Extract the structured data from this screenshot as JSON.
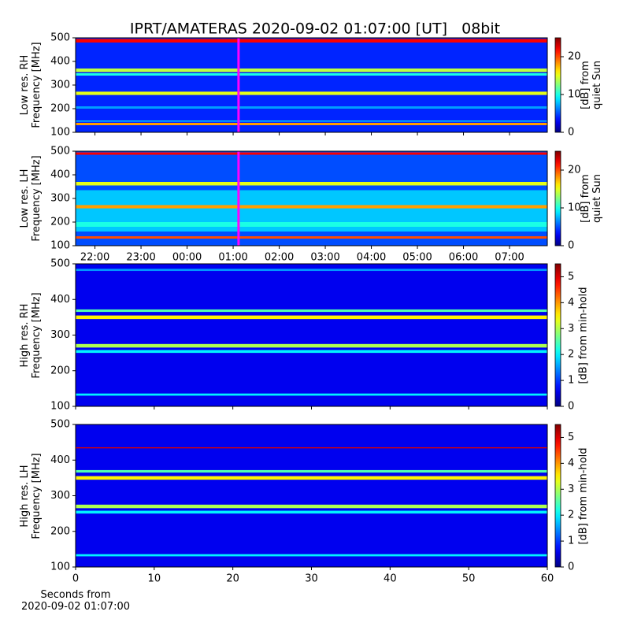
{
  "title": "IPRT/AMATERAS 2020-09-02 01:07:00 [UT]   08bit",
  "chart_data": [
    {
      "type": "spectrogram",
      "ylabel": "Low res. RH\nFrequency [MHz]",
      "ylim": [
        100,
        500
      ],
      "yticks": [
        100,
        200,
        300,
        400,
        500
      ],
      "xlim": [
        21.58,
        31.82
      ],
      "clim": [
        0,
        25
      ],
      "cticks": [
        0,
        10,
        20
      ],
      "clabel": "[dB] from\nquiet Sun",
      "background": 4,
      "bands": {
        "ymin": [
          480,
          355,
          340,
          258,
          200,
          130,
          145
        ],
        "ymax": [
          495,
          370,
          350,
          272,
          210,
          140,
          150
        ],
        "values": [
          22,
          14,
          10,
          15,
          7,
          18,
          8
        ]
      },
      "marker_x": 25.117,
      "marker_color": "#ff00ff"
    },
    {
      "type": "spectrogram",
      "ylabel": "Low res. LH\nFrequency [MHz]",
      "ylim": [
        100,
        500
      ],
      "yticks": [
        100,
        200,
        300,
        400,
        500
      ],
      "xlim": [
        21.58,
        31.82
      ],
      "xticks": [
        {
          "value": 22,
          "label": "22:00"
        },
        {
          "value": 23,
          "label": "23:00"
        },
        {
          "value": 24,
          "label": "00:00"
        },
        {
          "value": 25,
          "label": "01:00"
        },
        {
          "value": 26,
          "label": "02:00"
        },
        {
          "value": 27,
          "label": "03:00"
        },
        {
          "value": 28,
          "label": "04:00"
        },
        {
          "value": 29,
          "label": "05:00"
        },
        {
          "value": 30,
          "label": "06:00"
        },
        {
          "value": 31,
          "label": "07:00"
        }
      ],
      "clim": [
        0,
        25
      ],
      "cticks": [
        0,
        10,
        20
      ],
      "clabel": "[dB] from\nquiet Sun",
      "background": 5,
      "bands": {
        "ymin": [
          160,
          485,
          355,
          258,
          180,
          130
        ],
        "ymax": [
          335,
          495,
          370,
          272,
          200,
          140
        ],
        "values": [
          8,
          22,
          15,
          18,
          10,
          20
        ]
      },
      "marker_x": 25.117,
      "marker_color": "#ff00ff"
    },
    {
      "type": "spectrogram",
      "ylabel": "High res. RH\nFrequency [MHz]",
      "ylim": [
        100,
        500
      ],
      "yticks": [
        100,
        200,
        300,
        400,
        500
      ],
      "xlim": [
        0,
        60
      ],
      "clim": [
        0,
        5.5
      ],
      "cticks": [
        0,
        1,
        2,
        3,
        4,
        5
      ],
      "clabel": "[dB] from min-hold",
      "background": 0.6,
      "bands": {
        "ymin": [
          365,
          345,
          265,
          250,
          130,
          480
        ],
        "ymax": [
          372,
          355,
          275,
          258,
          136,
          486
        ],
        "values": [
          2.5,
          3.5,
          3,
          2,
          2,
          1.5
        ]
      }
    },
    {
      "type": "spectrogram",
      "ylabel": "High res. LH\nFrequency [MHz]",
      "ylim": [
        100,
        500
      ],
      "yticks": [
        100,
        200,
        300,
        400,
        500
      ],
      "xlim": [
        0,
        60
      ],
      "xticks": [
        0,
        10,
        20,
        30,
        40,
        50,
        60
      ],
      "xlabel": "Seconds from\n2020-09-02 01:07:00",
      "clim": [
        0,
        5.5
      ],
      "cticks": [
        0,
        1,
        2,
        3,
        4,
        5
      ],
      "clabel": "[dB] from min-hold",
      "background": 0.6,
      "bands": {
        "ymin": [
          365,
          345,
          265,
          250,
          130,
          433
        ],
        "ymax": [
          372,
          355,
          275,
          258,
          136,
          436
        ],
        "values": [
          2.5,
          3.5,
          3,
          2,
          2,
          5
        ]
      }
    }
  ]
}
